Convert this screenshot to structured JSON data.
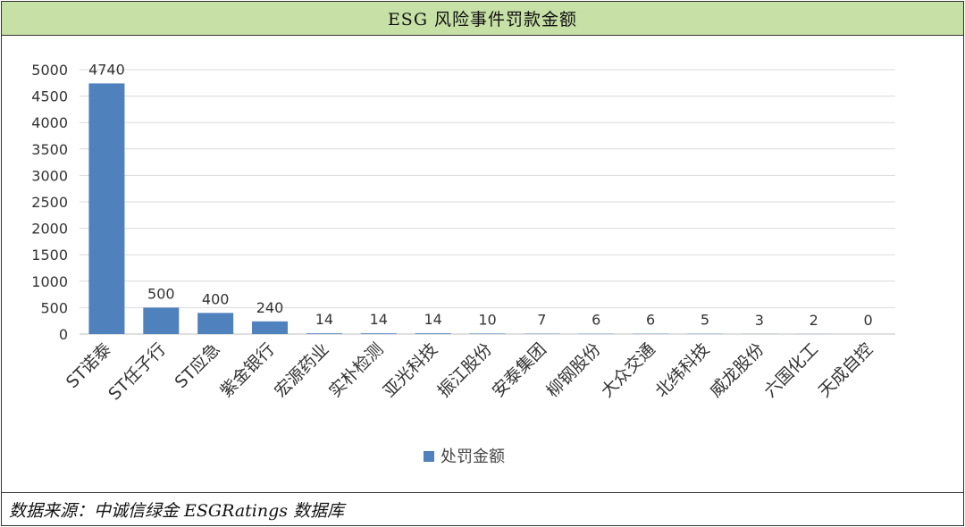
{
  "header": {
    "title": "ESG 风险事件罚款金额"
  },
  "footer": {
    "source": "数据来源：中诚信绿金 ESGRatings 数据库"
  },
  "colors": {
    "bar": "#4f81bd",
    "title_bg": "#c6e0a6",
    "grid": "#d9d9d9"
  },
  "chart_data": {
    "type": "bar",
    "title": "",
    "xlabel": "",
    "ylabel": "",
    "ylim": [
      0,
      5000
    ],
    "yticks": [
      0,
      500,
      1000,
      1500,
      2000,
      2500,
      3000,
      3500,
      4000,
      4500,
      5000
    ],
    "grid": true,
    "legend_position": "bottom",
    "categories": [
      "ST诺泰",
      "ST任子行",
      "ST应急",
      "紫金银行",
      "宏源药业",
      "实朴检测",
      "亚光科技",
      "振江股份",
      "安泰集团",
      "柳钢股份",
      "大众交通",
      "北纬科技",
      "威龙股份",
      "六国化工",
      "天成自控"
    ],
    "series": [
      {
        "name": "处罚金额",
        "values": [
          4740,
          500,
          400,
          240,
          14,
          14,
          14,
          10,
          7,
          6,
          6,
          5,
          3,
          2,
          0
        ]
      }
    ]
  }
}
